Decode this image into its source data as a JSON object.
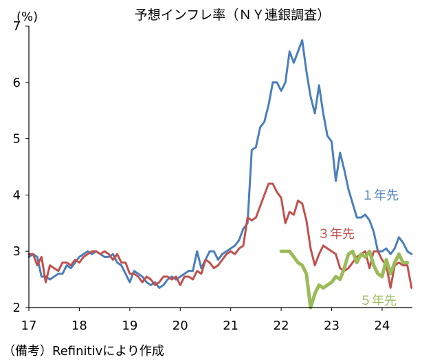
{
  "source_note": "（備考）Refinitivにより作成",
  "chart_data": {
    "type": "line",
    "title": "予想インフレ率（ＮＹ連銀調査）",
    "y_unit": "(%)",
    "ylim": [
      2,
      7
    ],
    "y_ticks": [
      2,
      3,
      4,
      5,
      6,
      7
    ],
    "xlim": [
      2017.0,
      2024.6
    ],
    "x_ticks": [
      {
        "label": "17",
        "year": 2017
      },
      {
        "label": "18",
        "year": 2018
      },
      {
        "label": "19",
        "year": 2019
      },
      {
        "label": "20",
        "year": 2020
      },
      {
        "label": "21",
        "year": 2021
      },
      {
        "label": "22",
        "year": 2022
      },
      {
        "label": "23",
        "year": 2023
      },
      {
        "label": "24",
        "year": 2024
      }
    ],
    "grid": false,
    "series": [
      {
        "name": "１年先",
        "color": "#4a7ebb",
        "start": "2017-01",
        "values": [
          2.9,
          2.95,
          2.9,
          2.55,
          2.55,
          2.5,
          2.55,
          2.6,
          2.6,
          2.75,
          2.7,
          2.8,
          2.9,
          2.95,
          3.0,
          2.95,
          3.0,
          2.95,
          2.9,
          2.9,
          2.95,
          2.8,
          2.75,
          2.6,
          2.45,
          2.65,
          2.6,
          2.55,
          2.45,
          2.4,
          2.45,
          2.35,
          2.4,
          2.5,
          2.55,
          2.5,
          2.55,
          2.6,
          2.65,
          2.65,
          3.0,
          2.7,
          2.85,
          3.0,
          3.0,
          2.85,
          2.95,
          3.0,
          3.05,
          3.1,
          3.2,
          3.4,
          3.5,
          4.8,
          4.85,
          5.2,
          5.3,
          5.6,
          6.0,
          6.0,
          5.85,
          6.0,
          6.55,
          6.35,
          6.55,
          6.75,
          6.2,
          5.75,
          5.45,
          5.95,
          5.45,
          5.05,
          4.95,
          4.25,
          4.75,
          4.45,
          4.1,
          3.85,
          3.6,
          3.6,
          3.65,
          3.55,
          3.35,
          3.0,
          3.0,
          3.05,
          2.95,
          3.05,
          3.25,
          3.15,
          3.0,
          2.95
        ]
      },
      {
        "name": "３年先",
        "color": "#c0504d",
        "start": "2017-01",
        "values": [
          2.95,
          2.95,
          2.75,
          2.9,
          2.45,
          2.75,
          2.7,
          2.65,
          2.8,
          2.8,
          2.75,
          2.85,
          2.8,
          2.9,
          2.95,
          3.0,
          3.0,
          2.95,
          3.0,
          2.95,
          2.85,
          2.95,
          2.8,
          2.8,
          2.6,
          2.6,
          2.55,
          2.45,
          2.55,
          2.5,
          2.4,
          2.45,
          2.55,
          2.55,
          2.5,
          2.55,
          2.4,
          2.55,
          2.55,
          2.5,
          2.65,
          2.6,
          2.85,
          2.8,
          2.7,
          2.75,
          2.85,
          2.95,
          3.0,
          2.95,
          3.05,
          3.1,
          3.6,
          3.55,
          3.6,
          3.8,
          4.0,
          4.2,
          4.2,
          4.05,
          3.95,
          3.5,
          3.7,
          3.65,
          3.9,
          3.85,
          3.55,
          3.05,
          2.75,
          2.95,
          3.1,
          3.05,
          3.0,
          2.95,
          2.7,
          2.65,
          2.7,
          2.8,
          2.9,
          2.95,
          3.0,
          2.7,
          3.0,
          3.0,
          2.85,
          2.75,
          2.35,
          2.75,
          2.8,
          2.75,
          2.75,
          2.35
        ]
      },
      {
        "name": "５年先",
        "color": "#9bbb59",
        "start": "2022-01",
        "values": [
          3.0,
          3.0,
          3.0,
          2.9,
          2.8,
          2.75,
          2.6,
          2.0,
          2.25,
          2.4,
          2.35,
          2.4,
          2.45,
          2.55,
          2.5,
          2.7,
          2.95,
          3.0,
          2.8,
          2.95,
          2.9,
          3.0,
          2.75,
          2.6,
          2.55,
          2.85,
          2.6,
          2.8,
          2.95,
          2.8,
          2.8
        ]
      }
    ]
  }
}
